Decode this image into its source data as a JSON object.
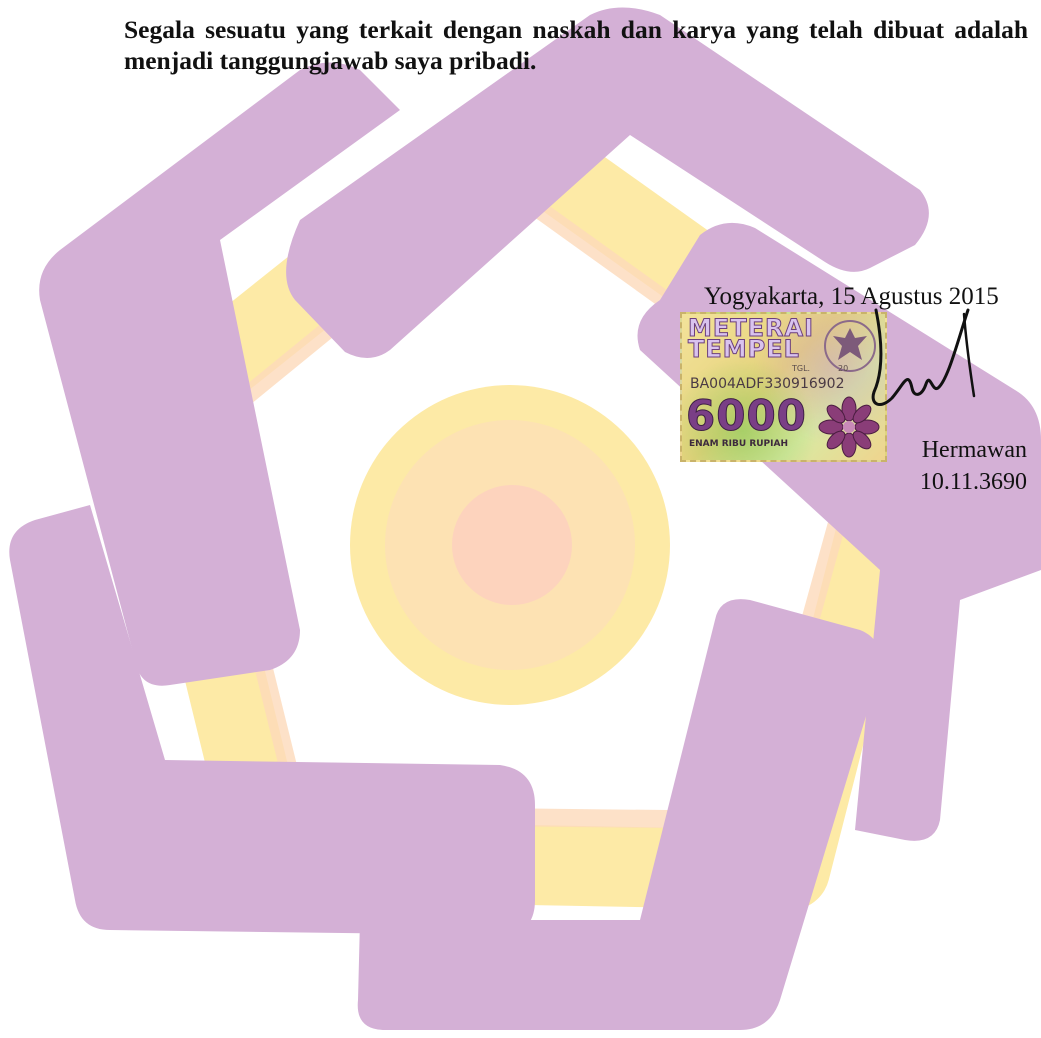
{
  "document": {
    "statement": "Segala sesuatu yang terkait dengan naskah dan karya yang telah dibuat adalah menjadi tanggungjawab saya pribadi.",
    "place_date": "Yogyakarta, 15 Agustus 2015",
    "signer_name": "Hermawan",
    "signer_id": "10.11.3690"
  },
  "stamp": {
    "title": "METERAI TEMPEL",
    "tgl_label": "TGL.",
    "year_prefix": "20",
    "serial": "BA004ADF330916902",
    "value": "6000",
    "value_words": "ENAM RIBU RUPIAH"
  },
  "colors": {
    "watermark_purple": "#d4b0d6",
    "watermark_yellow": "#fde9a4",
    "watermark_peach": "#fcd2b4",
    "text": "#111111"
  },
  "icons": {
    "watermark": "university-logo-watermark",
    "emblem": "garuda-emblem-icon",
    "flower": "flower-ornament-icon",
    "signature": "handwritten-signature"
  }
}
